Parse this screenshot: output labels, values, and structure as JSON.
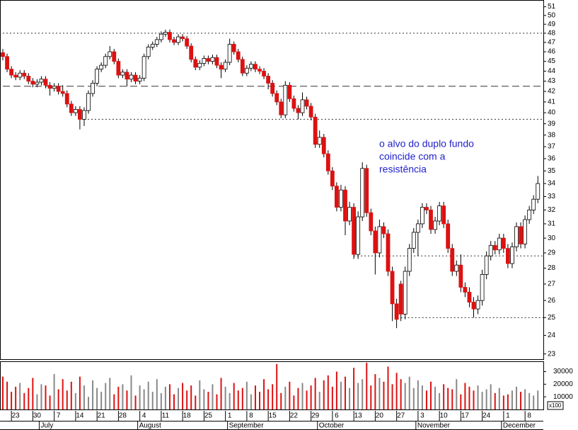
{
  "chart_data": {
    "type": "candlestick",
    "log": true,
    "ylim": [
      22.8,
      51.8
    ],
    "yticks": [
      23,
      24,
      25,
      26,
      27,
      28,
      29,
      30,
      31,
      32,
      33,
      34,
      35,
      36,
      37,
      38,
      39,
      40,
      41,
      42,
      43,
      44,
      45,
      46,
      47,
      48,
      49,
      50,
      51
    ],
    "up_color": "#ffffff",
    "down_color": "#dd1111",
    "annotation": [
      "o alvo do duplo fundo",
      "coincide com a",
      "resistência"
    ],
    "hlines": [
      {
        "value": 48,
        "style": "dotted",
        "from": 0
      },
      {
        "value": 42.5,
        "style": "dashed",
        "from": 0
      },
      {
        "value": 39.4,
        "style": "dotted",
        "from": 19
      },
      {
        "value": 28.8,
        "style": "dotted",
        "from": 82
      },
      {
        "value": 25.0,
        "style": "dotted",
        "from": 93
      }
    ],
    "categories": [
      null,
      null,
      null,
      "23",
      null,
      null,
      null,
      null,
      "30",
      null,
      null,
      null,
      null,
      "7",
      null,
      null,
      null,
      null,
      "14",
      null,
      null,
      null,
      null,
      "21",
      null,
      null,
      null,
      null,
      "28",
      null,
      null,
      null,
      null,
      "4",
      null,
      null,
      null,
      null,
      "11",
      null,
      null,
      null,
      null,
      "18",
      null,
      null,
      null,
      null,
      "25",
      null,
      null,
      null,
      null,
      "1",
      null,
      null,
      null,
      null,
      "8",
      null,
      null,
      null,
      null,
      "15",
      null,
      null,
      null,
      null,
      "22",
      null,
      null,
      null,
      null,
      "29",
      null,
      null,
      null,
      null,
      "6",
      null,
      null,
      null,
      null,
      "13",
      null,
      null,
      null,
      null,
      "20",
      null,
      null,
      null,
      null,
      "27",
      null,
      null,
      null,
      null,
      "3",
      null,
      null,
      null,
      null,
      "10",
      null,
      null,
      null,
      null,
      "17",
      null,
      null,
      null,
      null,
      "24",
      null,
      null,
      null,
      null,
      "1",
      null,
      null,
      null,
      null,
      "8",
      null,
      null
    ],
    "months": [
      null,
      null,
      null,
      null,
      null,
      null,
      null,
      null,
      null,
      "July",
      null,
      null,
      null,
      null,
      null,
      null,
      null,
      null,
      null,
      null,
      null,
      null,
      null,
      null,
      null,
      null,
      null,
      null,
      null,
      null,
      null,
      null,
      "August",
      null,
      null,
      null,
      null,
      null,
      null,
      null,
      null,
      null,
      null,
      null,
      null,
      null,
      null,
      null,
      null,
      null,
      null,
      null,
      null,
      "September",
      null,
      null,
      null,
      null,
      null,
      null,
      null,
      null,
      null,
      null,
      null,
      null,
      null,
      null,
      null,
      null,
      null,
      null,
      null,
      null,
      "October",
      null,
      null,
      null,
      null,
      null,
      null,
      null,
      null,
      null,
      null,
      null,
      null,
      null,
      null,
      null,
      null,
      null,
      null,
      null,
      null,
      null,
      null,
      "November",
      null,
      null,
      null,
      null,
      null,
      null,
      null,
      null,
      null,
      null,
      null,
      null,
      null,
      null,
      null,
      null,
      null,
      null,
      null,
      "December",
      null,
      null,
      null,
      null,
      null,
      null,
      null
    ],
    "ohlc": [
      [
        45.9,
        46.3,
        45.1,
        45.5
      ],
      [
        45.5,
        45.8,
        43.9,
        44.2
      ],
      [
        44.2,
        44.5,
        43.3,
        43.6
      ],
      [
        43.6,
        43.9,
        43.1,
        43.4
      ],
      [
        43.4,
        44.1,
        43.1,
        43.8
      ],
      [
        43.8,
        44.1,
        43.2,
        43.5
      ],
      [
        43.5,
        43.8,
        42.7,
        43.0
      ],
      [
        43.0,
        43.3,
        42.4,
        42.7
      ],
      [
        42.7,
        43.2,
        42.4,
        42.9
      ],
      [
        42.9,
        43.5,
        42.6,
        43.2
      ],
      [
        43.2,
        43.5,
        42.3,
        42.6
      ],
      [
        42.6,
        42.9,
        41.6,
        42.3
      ],
      [
        42.3,
        42.8,
        42.0,
        42.5
      ],
      [
        42.5,
        42.8,
        41.7,
        42.0
      ],
      [
        42.0,
        42.6,
        41.5,
        41.8
      ],
      [
        41.8,
        42.1,
        40.5,
        40.8
      ],
      [
        40.8,
        41.1,
        39.7,
        40.0
      ],
      [
        40.0,
        40.6,
        39.7,
        40.3
      ],
      [
        40.3,
        40.6,
        38.5,
        39.4
      ],
      [
        39.4,
        40.5,
        38.8,
        40.2
      ],
      [
        40.2,
        42.1,
        39.9,
        41.8
      ],
      [
        41.8,
        43.1,
        41.5,
        42.8
      ],
      [
        42.8,
        44.5,
        42.5,
        44.2
      ],
      [
        44.2,
        44.9,
        43.9,
        44.6
      ],
      [
        44.6,
        45.8,
        44.3,
        45.5
      ],
      [
        45.5,
        46.6,
        45.2,
        46.0
      ],
      [
        46.0,
        46.3,
        44.7,
        45.0
      ],
      [
        45.0,
        45.3,
        43.3,
        43.6
      ],
      [
        43.6,
        44.2,
        43.3,
        43.9
      ],
      [
        43.9,
        44.2,
        42.5,
        43.2
      ],
      [
        43.2,
        43.9,
        42.9,
        43.6
      ],
      [
        43.6,
        43.9,
        42.7,
        43.0
      ],
      [
        43.0,
        43.6,
        42.7,
        43.3
      ],
      [
        43.3,
        45.8,
        43.0,
        45.5
      ],
      [
        45.5,
        46.8,
        45.2,
        46.5
      ],
      [
        46.5,
        47.1,
        46.2,
        46.8
      ],
      [
        46.8,
        47.6,
        46.5,
        47.3
      ],
      [
        47.3,
        48.2,
        47.0,
        47.9
      ],
      [
        47.9,
        48.4,
        47.6,
        48.1
      ],
      [
        48.1,
        48.4,
        47.0,
        47.3
      ],
      [
        47.3,
        47.6,
        46.7,
        47.0
      ],
      [
        47.0,
        47.9,
        46.7,
        47.6
      ],
      [
        47.6,
        47.9,
        47.1,
        47.4
      ],
      [
        47.4,
        47.7,
        46.3,
        46.6
      ],
      [
        46.6,
        46.9,
        44.9,
        45.2
      ],
      [
        45.2,
        45.5,
        44.1,
        44.4
      ],
      [
        44.4,
        45.1,
        44.1,
        44.8
      ],
      [
        44.8,
        45.6,
        44.5,
        45.3
      ],
      [
        45.3,
        45.6,
        44.7,
        45.0
      ],
      [
        45.0,
        45.7,
        44.7,
        45.4
      ],
      [
        45.4,
        45.7,
        44.3,
        44.6
      ],
      [
        44.6,
        44.9,
        43.3,
        44.2
      ],
      [
        44.2,
        45.2,
        43.9,
        44.9
      ],
      [
        44.9,
        47.4,
        44.6,
        46.8
      ],
      [
        46.8,
        47.1,
        45.7,
        46.0
      ],
      [
        46.0,
        46.3,
        44.9,
        45.2
      ],
      [
        45.2,
        45.5,
        43.5,
        43.8
      ],
      [
        43.8,
        44.6,
        43.5,
        44.3
      ],
      [
        44.3,
        45.0,
        44.0,
        44.7
      ],
      [
        44.7,
        45.0,
        43.9,
        44.2
      ],
      [
        44.2,
        44.5,
        43.7,
        44.0
      ],
      [
        44.0,
        44.3,
        43.2,
        43.5
      ],
      [
        43.5,
        43.8,
        42.2,
        42.8
      ],
      [
        42.8,
        43.1,
        41.5,
        41.8
      ],
      [
        41.8,
        42.1,
        40.7,
        41.0
      ],
      [
        41.0,
        41.3,
        39.5,
        39.8
      ],
      [
        39.8,
        43.0,
        39.5,
        42.6
      ],
      [
        42.6,
        42.9,
        41.0,
        41.3
      ],
      [
        41.3,
        41.6,
        40.1,
        40.4
      ],
      [
        40.4,
        40.7,
        39.4,
        40.0
      ],
      [
        40.0,
        41.9,
        39.7,
        41.2
      ],
      [
        41.2,
        41.5,
        40.3,
        40.6
      ],
      [
        40.6,
        40.9,
        39.3,
        39.6
      ],
      [
        39.6,
        39.9,
        36.9,
        37.2
      ],
      [
        37.2,
        38.4,
        36.9,
        37.8
      ],
      [
        37.8,
        38.1,
        36.1,
        36.4
      ],
      [
        36.4,
        36.7,
        34.7,
        35.0
      ],
      [
        35.0,
        35.3,
        33.5,
        33.8
      ],
      [
        33.8,
        34.1,
        31.9,
        32.2
      ],
      [
        32.2,
        33.9,
        31.9,
        33.5
      ],
      [
        33.5,
        33.8,
        30.2,
        31.2
      ],
      [
        31.2,
        32.6,
        30.9,
        32.2
      ],
      [
        32.2,
        32.5,
        28.6,
        28.9
      ],
      [
        28.9,
        31.9,
        28.6,
        31.5
      ],
      [
        31.5,
        35.7,
        31.2,
        35.2
      ],
      [
        35.2,
        35.5,
        31.5,
        31.8
      ],
      [
        31.8,
        32.1,
        30.2,
        30.5
      ],
      [
        30.5,
        30.8,
        27.6,
        29.0
      ],
      [
        29.0,
        31.3,
        28.7,
        30.8
      ],
      [
        30.8,
        31.1,
        30.0,
        30.3
      ],
      [
        30.3,
        30.6,
        27.5,
        27.8
      ],
      [
        27.8,
        28.1,
        24.8,
        25.8
      ],
      [
        25.8,
        26.1,
        24.4,
        24.9
      ],
      [
        27.0,
        27.2,
        24.8,
        25.2
      ],
      [
        25.2,
        28.1,
        24.9,
        27.8
      ],
      [
        27.8,
        29.6,
        27.5,
        29.3
      ],
      [
        29.3,
        30.7,
        29.0,
        30.4
      ],
      [
        30.4,
        31.3,
        28.8,
        31.0
      ],
      [
        31.0,
        32.5,
        30.7,
        32.2
      ],
      [
        32.2,
        32.5,
        31.7,
        32.0
      ],
      [
        32.0,
        32.3,
        30.3,
        30.6
      ],
      [
        30.6,
        31.5,
        30.3,
        31.2
      ],
      [
        31.2,
        32.6,
        30.9,
        32.3
      ],
      [
        32.3,
        32.6,
        30.7,
        31.0
      ],
      [
        31.0,
        31.3,
        29.0,
        29.3
      ],
      [
        29.3,
        29.6,
        27.5,
        27.8
      ],
      [
        27.8,
        28.5,
        27.5,
        28.2
      ],
      [
        28.2,
        28.9,
        26.5,
        26.8
      ],
      [
        26.8,
        27.1,
        26.2,
        26.5
      ],
      [
        26.5,
        26.8,
        25.6,
        25.9
      ],
      [
        25.9,
        26.2,
        25.0,
        25.5
      ],
      [
        25.5,
        26.3,
        25.2,
        26.0
      ],
      [
        26.0,
        27.9,
        25.7,
        27.6
      ],
      [
        27.6,
        29.1,
        27.3,
        28.8
      ],
      [
        28.8,
        29.8,
        28.5,
        29.5
      ],
      [
        29.5,
        29.8,
        28.9,
        29.2
      ],
      [
        29.2,
        30.3,
        28.9,
        30.0
      ],
      [
        30.0,
        30.3,
        29.0,
        29.3
      ],
      [
        29.3,
        29.6,
        28.0,
        28.3
      ],
      [
        28.3,
        29.7,
        28.0,
        29.4
      ],
      [
        29.4,
        31.1,
        29.1,
        30.8
      ],
      [
        30.8,
        31.1,
        29.3,
        29.6
      ],
      [
        29.6,
        31.6,
        29.3,
        31.3
      ],
      [
        31.3,
        32.3,
        31.0,
        32.0
      ],
      [
        32.0,
        33.1,
        31.7,
        32.8
      ],
      [
        32.8,
        34.6,
        32.5,
        34.0
      ]
    ],
    "volume": [
      26000,
      22000,
      14000,
      18000,
      21000,
      13000,
      17000,
      25000,
      12000,
      20000,
      19000,
      11000,
      28000,
      16000,
      24000,
      15000,
      22000,
      13000,
      26000,
      19000,
      10000,
      23000,
      17000,
      14000,
      21000,
      25000,
      12000,
      18000,
      20000,
      15000,
      27000,
      11000,
      19000,
      16000,
      22000,
      14000,
      24000,
      13000,
      18000,
      20000,
      12000,
      17000,
      21000,
      15000,
      19000,
      11000,
      23000,
      16000,
      14000,
      20000,
      12000,
      25000,
      18000,
      13000,
      21000,
      15000,
      17000,
      22000,
      12000,
      19000,
      14000,
      24000,
      16000,
      20000,
      36000,
      13000,
      18000,
      22000,
      11000,
      17000,
      21000,
      15000,
      19000,
      25000,
      14000,
      23000,
      27000,
      18000,
      30000,
      22000,
      26000,
      17000,
      33000,
      21000,
      24000,
      37000,
      19000,
      28000,
      25000,
      22000,
      34000,
      20000,
      29000,
      24000,
      21000,
      26000,
      17000,
      23000,
      19000,
      15000,
      22000,
      18000,
      13000,
      20000,
      17000,
      16000,
      24000,
      12000,
      21000,
      18000,
      15000,
      19000,
      14000,
      16000,
      20000,
      13000,
      17000,
      11000,
      12000,
      15000,
      18000,
      14000,
      16000,
      13000,
      11000,
      15000
    ],
    "volume_up_color": "#888888",
    "vlim": [
      0,
      37600
    ],
    "vticks": [
      10000,
      20000,
      30000
    ],
    "volume_unit": "x100"
  }
}
